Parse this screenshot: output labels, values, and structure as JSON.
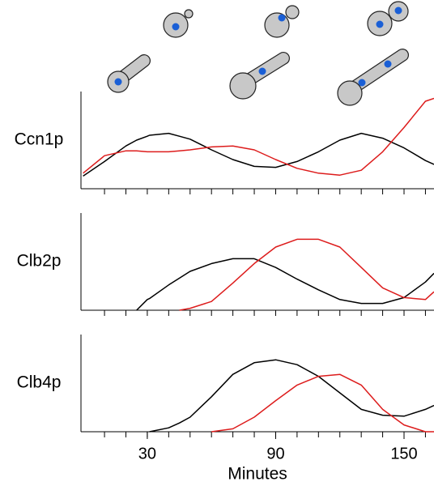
{
  "chart_data": [
    {
      "type": "line",
      "title": "Ccn1p",
      "x": [
        0,
        10,
        20,
        25,
        30,
        31,
        40,
        45,
        50,
        60,
        70,
        80,
        90,
        100,
        110,
        120,
        130,
        140,
        150,
        160,
        164
      ],
      "xlim": [
        -1,
        164
      ],
      "ylim": [
        0,
        1
      ],
      "xminor_ticks": [
        10,
        20,
        30,
        40,
        50,
        60,
        70,
        80,
        90,
        100,
        110,
        120,
        130,
        140,
        150,
        160
      ],
      "series": [
        {
          "color": "#000000",
          "values": [
            0.13,
            0.28,
            0.44,
            0.5,
            0.54,
            0.55,
            0.57,
            0.54,
            0.51,
            0.4,
            0.3,
            0.23,
            0.22,
            0.28,
            0.38,
            0.5,
            0.57,
            0.52,
            0.42,
            0.29,
            0.25
          ]
        },
        {
          "color": "#dd1c1c",
          "values": [
            0.16,
            0.34,
            0.39,
            0.39,
            0.38,
            0.38,
            0.38,
            0.39,
            0.4,
            0.43,
            0.44,
            0.4,
            0.3,
            0.21,
            0.16,
            0.14,
            0.19,
            0.38,
            0.63,
            0.9,
            0.93
          ]
        }
      ]
    },
    {
      "type": "line",
      "title": "Clb2p",
      "x": [
        0,
        10,
        20,
        25,
        30,
        31,
        40,
        45,
        50,
        60,
        70,
        80,
        90,
        100,
        110,
        120,
        130,
        140,
        150,
        160,
        164
      ],
      "xlim": [
        -1,
        164
      ],
      "ylim": [
        0,
        1
      ],
      "xminor_ticks": [
        10,
        20,
        30,
        40,
        50,
        60,
        70,
        80,
        90,
        100,
        110,
        120,
        130,
        140,
        150,
        160
      ],
      "series": [
        {
          "color": "#000000",
          "values": [
            null,
            null,
            null,
            0,
            0.11,
            0.12,
            0.26,
            0.33,
            0.4,
            0.48,
            0.53,
            0.53,
            0.44,
            0.32,
            0.21,
            0.11,
            0.07,
            0.07,
            0.13,
            0.29,
            0.38
          ]
        },
        {
          "color": "#dd1c1c",
          "values": [
            null,
            null,
            null,
            null,
            null,
            null,
            null,
            0,
            0.02,
            0.09,
            0.28,
            0.48,
            0.65,
            0.73,
            0.73,
            0.65,
            0.44,
            0.23,
            0.13,
            0.11,
            0.19
          ]
        }
      ]
    },
    {
      "type": "line",
      "title": "Clb4p",
      "x": [
        0,
        10,
        20,
        25,
        30,
        31,
        40,
        45,
        50,
        60,
        70,
        80,
        90,
        100,
        110,
        120,
        130,
        140,
        150,
        160,
        164
      ],
      "xlim": [
        -1,
        164
      ],
      "ylim": [
        0,
        1
      ],
      "xminor_ticks": [
        10,
        20,
        30,
        40,
        50,
        60,
        70,
        80,
        90,
        100,
        110,
        120,
        130,
        140,
        150,
        160
      ],
      "xticks": [
        30,
        90,
        150
      ],
      "xlabel": "Minutes",
      "series": [
        {
          "color": "#000000",
          "values": [
            null,
            null,
            null,
            null,
            null,
            0,
            0.04,
            0.09,
            0.15,
            0.36,
            0.59,
            0.71,
            0.74,
            0.69,
            0.57,
            0.4,
            0.23,
            0.17,
            0.16,
            0.23,
            0.27
          ]
        },
        {
          "color": "#dd1c1c",
          "values": [
            null,
            null,
            null,
            null,
            null,
            null,
            null,
            null,
            null,
            0,
            0.03,
            0.15,
            0.32,
            0.48,
            0.57,
            0.59,
            0.48,
            0.23,
            0.07,
            0,
            0
          ]
        }
      ]
    }
  ]
}
